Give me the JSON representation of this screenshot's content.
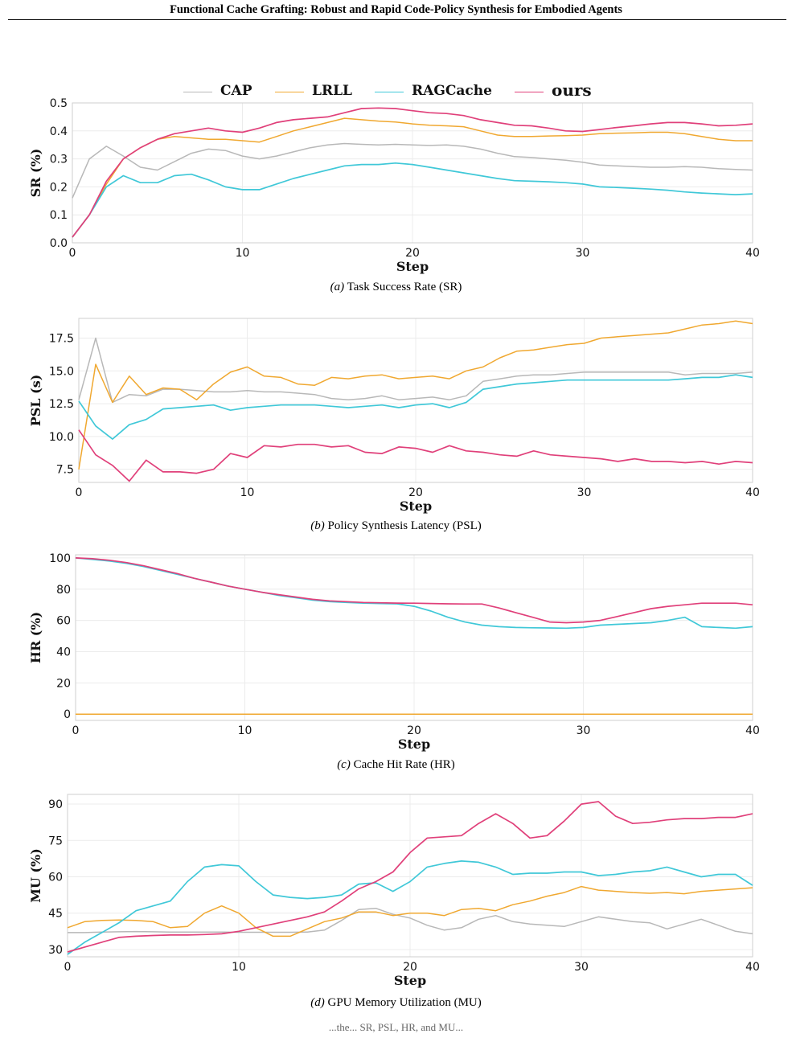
{
  "header": {
    "title": "Functional Cache Grafting: Robust and Rapid Code-Policy Synthesis for Embodied Agents"
  },
  "legend": [
    {
      "name": "CAP",
      "color": "#b8b8b8"
    },
    {
      "name": "LRLL",
      "color": "#f0a830"
    },
    {
      "name": "RAGCache",
      "color": "#40c8d8"
    },
    {
      "name": "ours",
      "color": "#e0407a"
    }
  ],
  "footer": {
    "text": "...the... SR, PSL, HR, and MU..."
  },
  "chart_data": [
    {
      "type": "line",
      "id": "sr",
      "caption_tag": "(a)",
      "caption_text": "Task Success Rate (SR)",
      "xlabel": "Step",
      "ylabel": "SR (%)",
      "xlim": [
        0,
        40
      ],
      "ylim": [
        0,
        0.5
      ],
      "xticks": [
        0,
        10,
        20,
        30,
        40
      ],
      "yticks": [
        0.0,
        0.1,
        0.2,
        0.3,
        0.4,
        0.5
      ],
      "ytick_labels": [
        "0.0",
        "0.1",
        "0.2",
        "0.3",
        "0.4",
        "0.5"
      ],
      "grid": true,
      "series": [
        {
          "name": "CAP",
          "color": "#b8b8b8",
          "values": [
            0.16,
            0.3,
            0.345,
            0.31,
            0.27,
            0.26,
            0.29,
            0.32,
            0.335,
            0.33,
            0.31,
            0.3,
            0.31,
            0.325,
            0.34,
            0.35,
            0.355,
            0.352,
            0.35,
            0.352,
            0.35,
            0.348,
            0.35,
            0.345,
            0.335,
            0.32,
            0.308,
            0.305,
            0.3,
            0.295,
            0.288,
            0.278,
            0.275,
            0.272,
            0.27,
            0.27,
            0.272,
            0.27,
            0.265,
            0.262,
            0.26
          ]
        },
        {
          "name": "LRLL",
          "color": "#f0a830",
          "values": [
            0.02,
            0.1,
            0.21,
            0.3,
            0.34,
            0.37,
            0.38,
            0.375,
            0.37,
            0.37,
            0.365,
            0.36,
            0.38,
            0.4,
            0.415,
            0.43,
            0.445,
            0.44,
            0.435,
            0.432,
            0.425,
            0.42,
            0.418,
            0.415,
            0.4,
            0.385,
            0.38,
            0.38,
            0.382,
            0.383,
            0.385,
            0.39,
            0.392,
            0.393,
            0.395,
            0.395,
            0.39,
            0.38,
            0.37,
            0.365,
            0.365
          ]
        },
        {
          "name": "RAGCache",
          "color": "#40c8d8",
          "values": [
            0.02,
            0.1,
            0.2,
            0.24,
            0.215,
            0.215,
            0.24,
            0.245,
            0.225,
            0.2,
            0.19,
            0.19,
            0.21,
            0.23,
            0.245,
            0.26,
            0.275,
            0.28,
            0.28,
            0.285,
            0.28,
            0.27,
            0.26,
            0.25,
            0.24,
            0.23,
            0.222,
            0.22,
            0.218,
            0.215,
            0.21,
            0.2,
            0.198,
            0.195,
            0.192,
            0.188,
            0.182,
            0.178,
            0.175,
            0.172,
            0.175
          ]
        },
        {
          "name": "ours",
          "color": "#e0407a",
          "values": [
            0.02,
            0.1,
            0.22,
            0.3,
            0.34,
            0.37,
            0.39,
            0.4,
            0.41,
            0.4,
            0.395,
            0.41,
            0.43,
            0.44,
            0.445,
            0.45,
            0.465,
            0.48,
            0.482,
            0.48,
            0.472,
            0.465,
            0.462,
            0.455,
            0.44,
            0.43,
            0.42,
            0.418,
            0.41,
            0.4,
            0.398,
            0.405,
            0.412,
            0.418,
            0.425,
            0.43,
            0.43,
            0.425,
            0.418,
            0.42,
            0.425
          ]
        }
      ]
    },
    {
      "type": "line",
      "id": "psl",
      "caption_tag": "(b)",
      "caption_text": "Policy Synthesis Latency (PSL)",
      "xlabel": "Step",
      "ylabel": "PSL (s)",
      "xlim": [
        0,
        40
      ],
      "ylim": [
        6.5,
        19.0
      ],
      "xticks": [
        0,
        10,
        20,
        30,
        40
      ],
      "yticks": [
        7.5,
        10.0,
        12.5,
        15.0,
        17.5
      ],
      "ytick_labels": [
        "7.5",
        "10.0",
        "12.5",
        "15.0",
        "17.5"
      ],
      "grid": true,
      "series": [
        {
          "name": "CAP",
          "color": "#b8b8b8",
          "values": [
            12.8,
            17.5,
            12.6,
            13.2,
            13.1,
            13.6,
            13.6,
            13.5,
            13.4,
            13.4,
            13.5,
            13.4,
            13.4,
            13.3,
            13.2,
            12.9,
            12.8,
            12.9,
            13.1,
            12.8,
            12.9,
            13.0,
            12.8,
            13.1,
            14.2,
            14.4,
            14.6,
            14.7,
            14.7,
            14.8,
            14.9,
            14.9,
            14.9,
            14.9,
            14.9,
            14.9,
            14.7,
            14.8,
            14.8,
            14.8,
            14.9
          ]
        },
        {
          "name": "LRLL",
          "color": "#f0a830",
          "values": [
            7.5,
            15.5,
            12.6,
            14.6,
            13.2,
            13.7,
            13.6,
            12.8,
            14.0,
            14.9,
            15.3,
            14.6,
            14.5,
            14.0,
            13.9,
            14.5,
            14.4,
            14.6,
            14.7,
            14.4,
            14.5,
            14.6,
            14.4,
            15.0,
            15.3,
            16.0,
            16.5,
            16.6,
            16.8,
            17.0,
            17.1,
            17.5,
            17.6,
            17.7,
            17.8,
            17.9,
            18.2,
            18.5,
            18.6,
            18.8,
            18.6
          ]
        },
        {
          "name": "RAGCache",
          "color": "#40c8d8",
          "values": [
            12.7,
            10.8,
            9.8,
            10.9,
            11.3,
            12.1,
            12.2,
            12.3,
            12.4,
            12.0,
            12.2,
            12.3,
            12.4,
            12.4,
            12.4,
            12.3,
            12.2,
            12.3,
            12.4,
            12.2,
            12.4,
            12.5,
            12.2,
            12.6,
            13.6,
            13.8,
            14.0,
            14.1,
            14.2,
            14.3,
            14.3,
            14.3,
            14.3,
            14.3,
            14.3,
            14.3,
            14.4,
            14.5,
            14.5,
            14.7,
            14.5
          ]
        },
        {
          "name": "ours",
          "color": "#e0407a",
          "values": [
            10.5,
            8.6,
            7.8,
            6.6,
            8.2,
            7.3,
            7.3,
            7.2,
            7.5,
            8.7,
            8.4,
            9.3,
            9.2,
            9.4,
            9.4,
            9.2,
            9.3,
            8.8,
            8.7,
            9.2,
            9.1,
            8.8,
            9.3,
            8.9,
            8.8,
            8.6,
            8.5,
            8.9,
            8.6,
            8.5,
            8.4,
            8.3,
            8.1,
            8.3,
            8.1,
            8.1,
            8.0,
            8.1,
            7.9,
            8.1,
            8.0
          ]
        }
      ]
    },
    {
      "type": "line",
      "id": "hr",
      "caption_tag": "(c)",
      "caption_text": "Cache Hit Rate (HR)",
      "xlabel": "Step",
      "ylabel": "HR (%)",
      "xlim": [
        0,
        40
      ],
      "ylim": [
        -4,
        102
      ],
      "xticks": [
        0,
        10,
        20,
        30,
        40
      ],
      "yticks": [
        0,
        20,
        40,
        60,
        80,
        100
      ],
      "ytick_labels": [
        "0",
        "20",
        "40",
        "60",
        "80",
        "100"
      ],
      "grid": true,
      "series": [
        {
          "name": "CAP",
          "color": "#b8b8b8",
          "values": [
            0,
            0,
            0,
            0,
            0,
            0,
            0,
            0,
            0,
            0,
            0,
            0,
            0,
            0,
            0,
            0,
            0,
            0,
            0,
            0,
            0,
            0,
            0,
            0,
            0,
            0,
            0,
            0,
            0,
            0,
            0,
            0,
            0,
            0,
            0,
            0,
            0,
            0,
            0,
            0,
            0
          ]
        },
        {
          "name": "LRLL",
          "color": "#f0a830",
          "values": [
            0,
            0,
            0,
            0,
            0,
            0,
            0,
            0,
            0,
            0,
            0,
            0,
            0,
            0,
            0,
            0,
            0,
            0,
            0,
            0,
            0,
            0,
            0,
            0,
            0,
            0,
            0,
            0,
            0,
            0,
            0,
            0,
            0,
            0,
            0,
            0,
            0,
            0,
            0,
            0,
            0
          ]
        },
        {
          "name": "RAGCache",
          "color": "#40c8d8",
          "values": [
            100,
            99,
            98,
            96.5,
            94.5,
            92,
            89.5,
            87,
            84.5,
            82,
            80,
            78,
            76,
            74.5,
            73,
            72,
            71.5,
            71,
            70.8,
            70.6,
            69,
            66,
            62,
            59,
            57,
            56,
            55.5,
            55.3,
            55.2,
            55.0,
            55.5,
            57,
            57.5,
            58,
            58.5,
            60,
            62,
            56,
            55.5,
            55,
            56
          ]
        },
        {
          "name": "ours",
          "color": "#e0407a",
          "values": [
            100,
            99.5,
            98.5,
            97,
            95,
            92.5,
            90,
            87,
            84.5,
            82,
            80,
            78,
            76.5,
            75,
            73.5,
            72.5,
            72,
            71.5,
            71.3,
            71.1,
            71,
            70.8,
            70.6,
            70.5,
            70.5,
            68,
            65,
            62,
            59,
            58.5,
            59,
            60,
            62.5,
            65,
            67.5,
            69,
            70,
            71,
            71,
            71,
            70
          ]
        }
      ]
    },
    {
      "type": "line",
      "id": "mu",
      "caption_tag": "(d)",
      "caption_text": "GPU Memory Utilization (MU)",
      "xlabel": "Step",
      "ylabel": "MU (%)",
      "xlim": [
        0,
        40
      ],
      "ylim": [
        27,
        94
      ],
      "xticks": [
        0,
        10,
        20,
        30,
        40
      ],
      "yticks": [
        30,
        45,
        60,
        75,
        90
      ],
      "ytick_labels": [
        "30",
        "45",
        "60",
        "75",
        "90"
      ],
      "grid": true,
      "series": [
        {
          "name": "CAP",
          "color": "#b8b8b8",
          "values": [
            37,
            37,
            37.2,
            37.3,
            37.4,
            37.3,
            37.2,
            37.2,
            37.2,
            37.2,
            37.1,
            37.1,
            37.1,
            37.1,
            37.2,
            38,
            42,
            46.5,
            47,
            44.5,
            43,
            40,
            38,
            39,
            42.5,
            44,
            41.5,
            40.5,
            40,
            39.5,
            41.5,
            43.5,
            42.5,
            41.5,
            41,
            38.5,
            40.5,
            42.5,
            40,
            37.5,
            36.5
          ]
        },
        {
          "name": "LRLL",
          "color": "#f0a830",
          "values": [
            39,
            41.5,
            42,
            42.2,
            42,
            41.5,
            39,
            39.5,
            45,
            48,
            45,
            39,
            35.5,
            35.5,
            38.5,
            41.5,
            43,
            45.5,
            45.5,
            44,
            45,
            45,
            44,
            46.5,
            47,
            46,
            48.5,
            50,
            52,
            53.5,
            56,
            54.5,
            54,
            53.5,
            53.2,
            53.5,
            53,
            54,
            54.5,
            55,
            55.5
          ]
        },
        {
          "name": "RAGCache",
          "color": "#40c8d8",
          "values": [
            28,
            33,
            37,
            41,
            46,
            48,
            50,
            58,
            64,
            65,
            64.5,
            58,
            52.5,
            51.5,
            51,
            51.5,
            52.5,
            57,
            57.5,
            54,
            58,
            64,
            65.5,
            66.5,
            66,
            64,
            61,
            61.5,
            61.5,
            62,
            62,
            60.5,
            61,
            62,
            62.5,
            64,
            62,
            60,
            61,
            61,
            56.5
          ]
        },
        {
          "name": "ours",
          "color": "#e0407a",
          "values": [
            29,
            31,
            33,
            35,
            35.5,
            35.8,
            36,
            36,
            36.2,
            36.5,
            37.5,
            39,
            40.5,
            42,
            43.5,
            45.5,
            50,
            55,
            58,
            62,
            70,
            76,
            76.5,
            77,
            82,
            86,
            82,
            76,
            77,
            83,
            90,
            91,
            85,
            82,
            82.5,
            83.5,
            84,
            84,
            84.5,
            84.5,
            86
          ]
        }
      ]
    }
  ]
}
